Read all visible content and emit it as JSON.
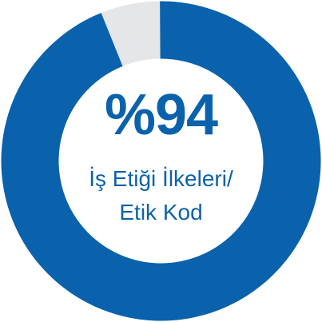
{
  "chart_data": {
    "type": "pie",
    "style": "donut",
    "slices": [
      {
        "label": "",
        "value": 94,
        "color": "#0a62ac"
      },
      {
        "label": "",
        "value": 6,
        "color": "#e5e6e8"
      }
    ]
  },
  "center": {
    "value_text": "%94",
    "label_line1": "İş Etiği İlkeleri/",
    "label_line2": "Etik Kod"
  },
  "colors": {
    "accent": "#0a62ac",
    "remainder": "#e5e6e8",
    "background": "#ffffff"
  }
}
